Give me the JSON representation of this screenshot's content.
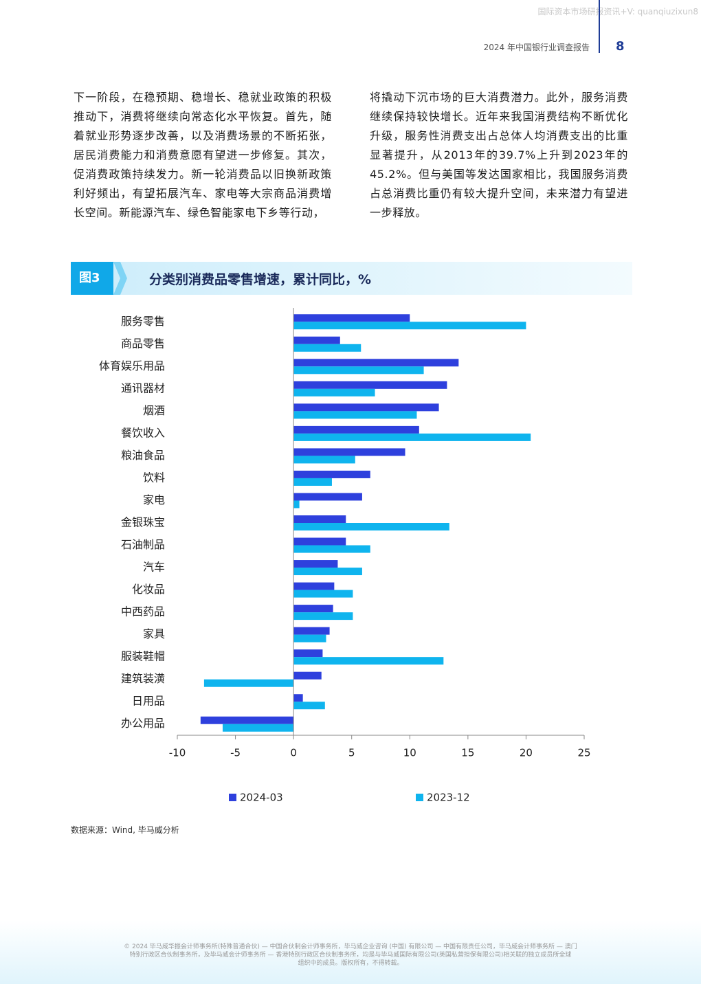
{
  "header": {
    "watermark": "国际资本市场研报资讯+V: quanqiuzixun8",
    "report_title": "2024 年中国银行业调查报告",
    "page_number": "8"
  },
  "body": {
    "paragraphs": [
      "下一阶段，在稳预期、稳增长、稳就业政策的积极推动下，消费将继续向常态化水平恢复。首先，随着就业形势逐步改善，以及消费场景的不断拓张，居民消费能力和消费意愿有望进一步修复。其次，促消费政策持续发力。新一轮消费品以旧换新政策利好频出，有望拓展汽车、家电等大宗商品消费增长空间。新能源汽车、绿色智能家电下乡等行动，",
      "将撬动下沉市场的巨大消费潜力。此外，服务消费继续保持较快增长。近年来我国消费结构不断优化升级，服务性消费支出占总体人均消费支出的比重显著提升，从2013年的39.7%上升到2023年的45.2%。但与美国等发达国家相比，我国服务消费占总消费比重仍有较大提升空间，未来潜力有望进一步释放。"
    ]
  },
  "figure": {
    "label": "图3"
  },
  "chart_data": {
    "type": "hbar",
    "title": "分类别消费品零售增速，累计同比，%",
    "categories": [
      "服务零售",
      "商品零售",
      "体育娱乐用品",
      "通讯器材",
      "烟酒",
      "餐饮收入",
      "粮油食品",
      "饮料",
      "家电",
      "金银珠宝",
      "石油制品",
      "汽车",
      "化妆品",
      "中西药品",
      "家具",
      "服装鞋帽",
      "建筑装潢",
      "日用品",
      "办公用品"
    ],
    "series": [
      {
        "name": "2024-03",
        "color": "#2e40dd",
        "values": [
          10.0,
          4.0,
          14.2,
          13.2,
          12.5,
          10.8,
          9.6,
          6.6,
          5.9,
          4.5,
          4.5,
          3.8,
          3.5,
          3.4,
          3.1,
          2.5,
          2.4,
          0.8,
          -8.0
        ]
      },
      {
        "name": "2023-12",
        "color": "#0fb4ee",
        "values": [
          20.0,
          5.8,
          11.2,
          7.0,
          10.6,
          20.4,
          5.3,
          3.3,
          0.5,
          13.4,
          6.6,
          5.9,
          5.1,
          5.1,
          2.8,
          12.9,
          -7.7,
          2.7,
          -6.1
        ]
      }
    ],
    "xlim": [
      -10,
      25
    ],
    "xticks": [
      -10,
      -5,
      0,
      5,
      10,
      15,
      20,
      25
    ],
    "legend": "bottom"
  },
  "source": "数据来源：Wind, 毕马威分析",
  "footer": {
    "lines": [
      "© 2024 毕马威华振会计师事务所(特殊普通合伙) — 中国合伙制会计师事务所，毕马威企业咨询 (中国) 有限公司 — 中国有限责任公司，毕马威会计师事务所 — 澳门",
      "特别行政区合伙制事务所，及毕马威会计师事务所 — 香港特别行政区合伙制事务所，均是与毕马威国际有限公司(英国私营担保有限公司)相关联的独立成员所全球",
      "组织中的成员。版权所有，不得转载。"
    ]
  }
}
